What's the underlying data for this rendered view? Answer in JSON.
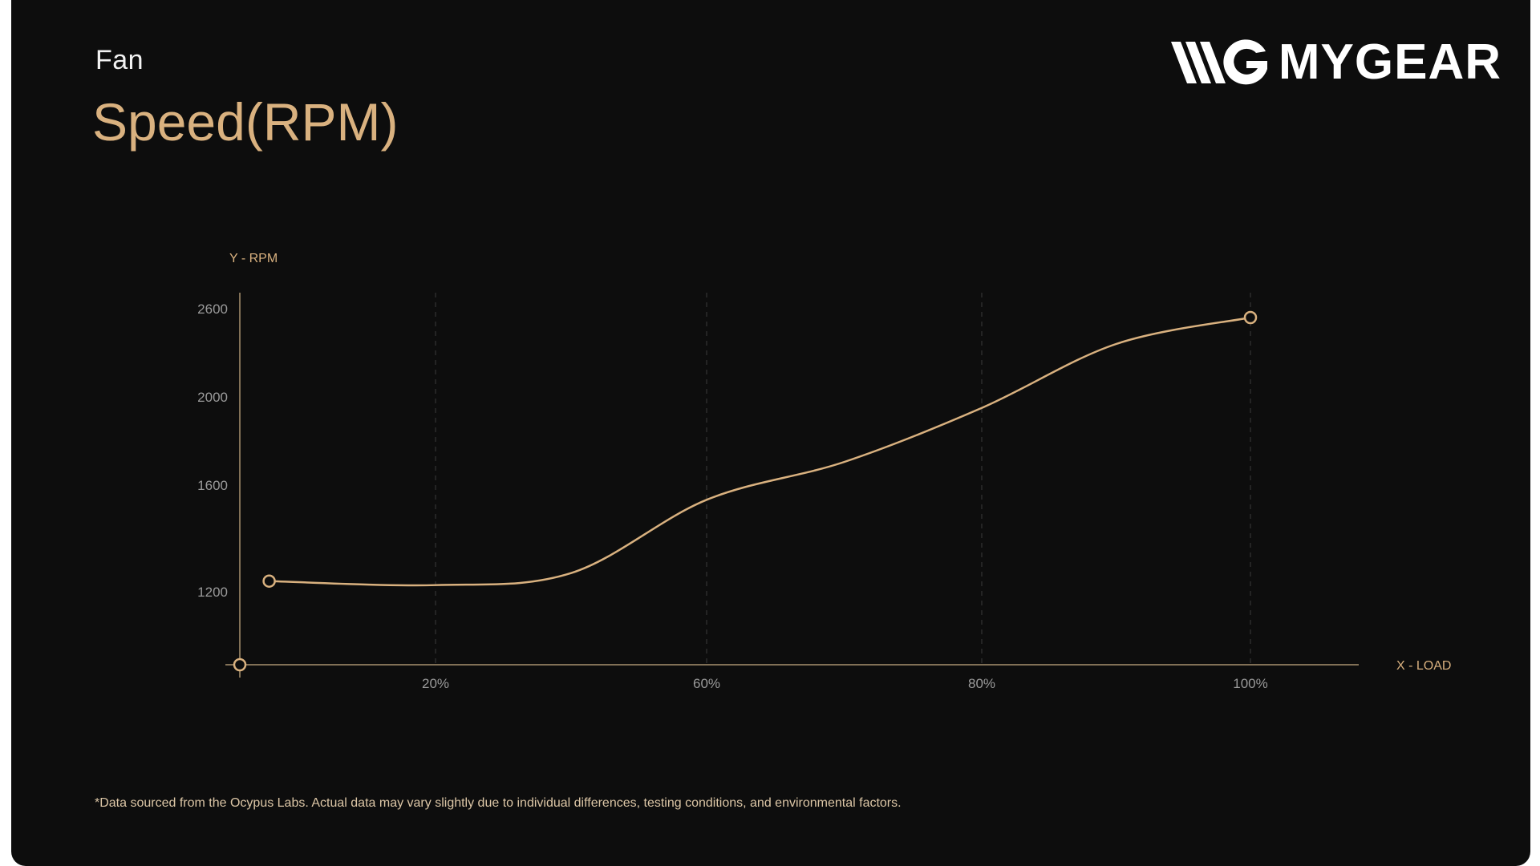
{
  "header": {
    "eyebrow": "Fan",
    "title": "Speed(RPM)"
  },
  "logo": {
    "text": "MYGEAR",
    "icon": "mygear-logo-icon"
  },
  "footnote": "*Data sourced from the Ocypus Labs. Actual data may vary slightly due to individual differences, testing conditions, and environmental factors.",
  "colors": {
    "background": "#0d0d0d",
    "accent": "#d9b17f",
    "axis": "#a8926f",
    "grid": "#3a3a3a",
    "tick_text": "#9a9a9a"
  },
  "chart_data": {
    "type": "line",
    "xlabel": "X - LOAD",
    "ylabel": "Y - RPM",
    "x_ticks": [
      {
        "label": "20%",
        "value": 20
      },
      {
        "label": "60%",
        "value": 60
      },
      {
        "label": "80%",
        "value": 80
      },
      {
        "label": "100%",
        "value": 100
      }
    ],
    "y_ticks": [
      {
        "label": "1200",
        "value": 1200
      },
      {
        "label": "1600",
        "value": 1600
      },
      {
        "label": "2000",
        "value": 2000
      },
      {
        "label": "2600",
        "value": 2600
      }
    ],
    "series": [
      {
        "points": [
          {
            "x": 3,
            "y": 1240
          },
          {
            "x": 20,
            "y": 1225
          },
          {
            "x": 40,
            "y": 1270
          },
          {
            "x": 60,
            "y": 1545
          },
          {
            "x": 70,
            "y": 1705
          },
          {
            "x": 80,
            "y": 1950
          },
          {
            "x": 90,
            "y": 2360
          },
          {
            "x": 100,
            "y": 2540
          }
        ],
        "markers": [
          {
            "x": 3,
            "y": 1240
          },
          {
            "x": 100,
            "y": 2540
          }
        ]
      }
    ],
    "origin_marker": true,
    "grid": "vertical-dashed"
  }
}
